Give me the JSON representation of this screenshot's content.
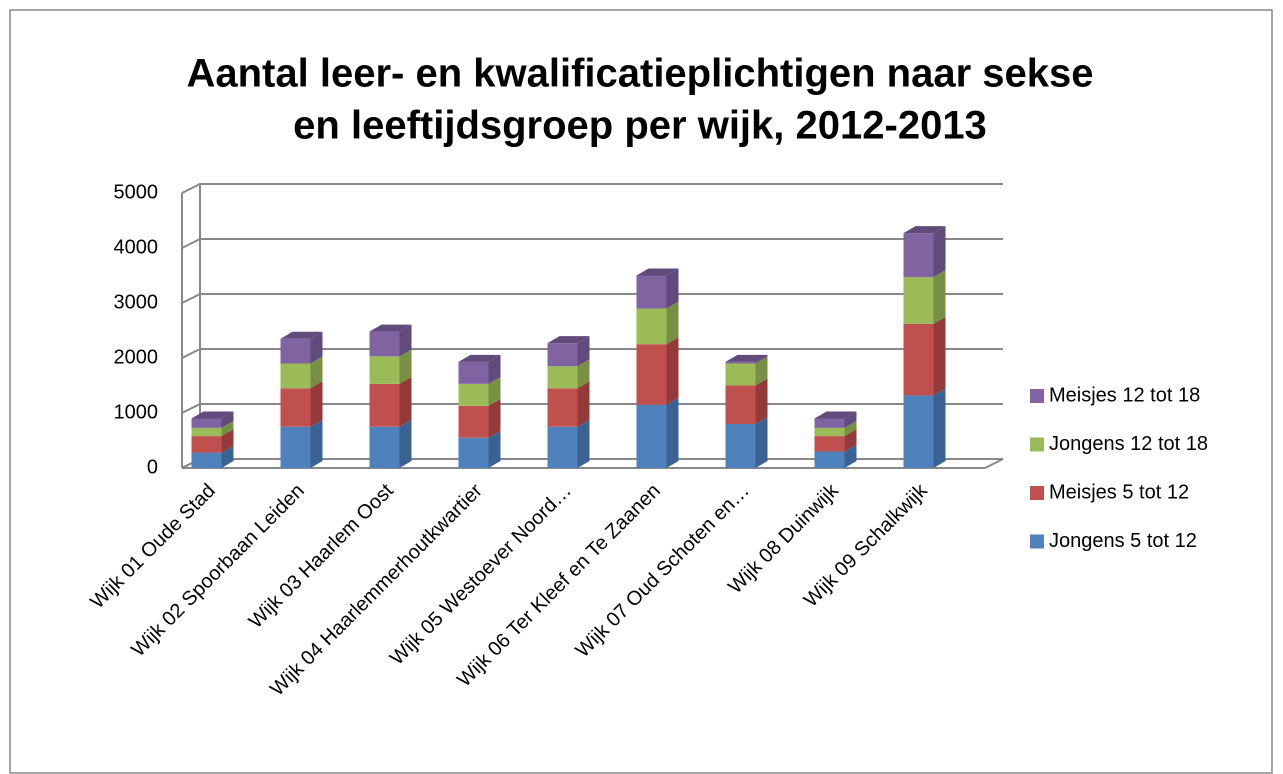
{
  "chart_data": {
    "type": "bar3d_stacked",
    "title": [
      "Aantal leer- en kwalificatieplichtigen naar sekse",
      "en leeftijdsgroep per wijk, 2012-2013"
    ],
    "categories": [
      "Wijk 01 Oude Stad",
      "Wijk 02 Spoorbaan Leiden",
      "Wijk 03 Haarlem Oost",
      "Wijk 04 Haarlemmerhoutkwartier",
      "Wijk 05 Westoever Noord…",
      "Wijk 06 Ter Kleef en Te Zaanen",
      "Wijk 07 Oud Schoten en…",
      "Wijk 08 Duinwijk",
      "Wijk 09 Schalkwijk"
    ],
    "series": [
      {
        "name": "Jongens 5 tot 12",
        "color": "#4f81bd",
        "side": "#3a6394",
        "values": [
          280,
          750,
          750,
          550,
          750,
          1150,
          800,
          300,
          1320
        ]
      },
      {
        "name": "Meisjes 5 tot 12",
        "color": "#c0504d",
        "side": "#943b39",
        "values": [
          300,
          700,
          780,
          580,
          700,
          1100,
          700,
          280,
          1300
        ]
      },
      {
        "name": "Jongens 12 tot 18",
        "color": "#9bbb59",
        "side": "#779044",
        "values": [
          150,
          450,
          500,
          400,
          400,
          650,
          400,
          150,
          850
        ]
      },
      {
        "name": "Meisjes 12 tot 18",
        "color": "#8064a2",
        "side": "#614b7c",
        "values": [
          170,
          450,
          450,
          400,
          420,
          600,
          30,
          170,
          800
        ]
      }
    ],
    "ylim": [
      0,
      5000
    ],
    "yticks": [
      0,
      1000,
      2000,
      3000,
      4000,
      5000
    ],
    "grid": true,
    "legend": "right"
  }
}
